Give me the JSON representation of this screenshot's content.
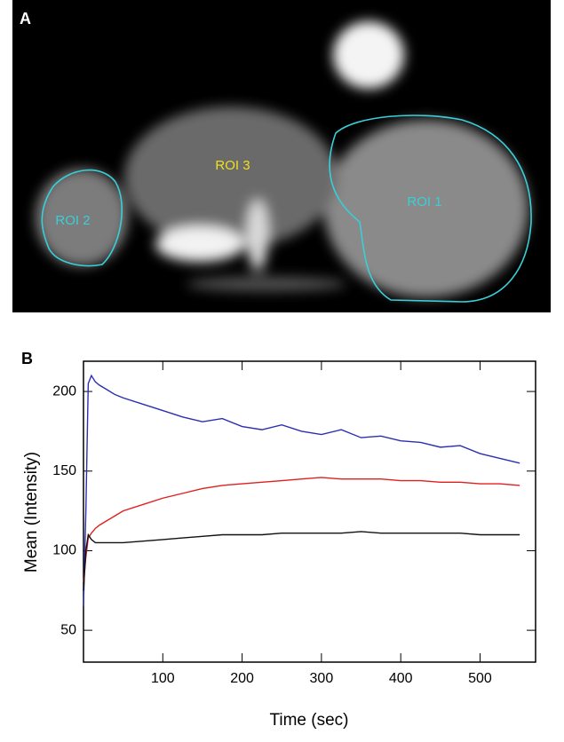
{
  "panel_a": {
    "label": "A",
    "rois": [
      "ROI 1",
      "ROI 2",
      "ROI 3"
    ]
  },
  "chart_data": {
    "type": "line",
    "panel_label": "B",
    "xlabel": "Time (sec)",
    "ylabel": "Mean (Intensity)",
    "x": [
      0,
      3,
      6,
      10,
      15,
      20,
      30,
      40,
      50,
      75,
      100,
      125,
      150,
      175,
      200,
      225,
      250,
      275,
      300,
      325,
      350,
      375,
      400,
      425,
      450,
      475,
      500,
      525,
      550
    ],
    "series": [
      {
        "color": "#2b2fb0",
        "values": [
          65,
          125,
          205,
          210,
          206,
          204,
          201,
          198,
          196,
          192,
          188,
          184,
          181,
          183,
          178,
          176,
          179,
          175,
          173,
          176,
          171,
          172,
          169,
          168,
          165,
          166,
          161,
          158,
          155
        ]
      },
      {
        "color": "#e0201f",
        "values": [
          80,
          96,
          108,
          111,
          114,
          116,
          119,
          122,
          125,
          129,
          133,
          136,
          139,
          141,
          142,
          143,
          144,
          145,
          146,
          145,
          145,
          145,
          144,
          144,
          143,
          143,
          142,
          142,
          141
        ]
      },
      {
        "color": "#111111",
        "values": [
          75,
          100,
          110,
          107,
          105,
          105,
          105,
          105,
          105,
          106,
          107,
          108,
          109,
          110,
          110,
          110,
          111,
          111,
          111,
          111,
          112,
          111,
          111,
          111,
          111,
          111,
          110,
          110,
          110
        ]
      }
    ],
    "xlim": [
      0,
      570
    ],
    "ylim": [
      30,
      219
    ],
    "xticks": [
      100,
      200,
      300,
      400,
      500
    ],
    "yticks": [
      50,
      100,
      150,
      200
    ]
  }
}
